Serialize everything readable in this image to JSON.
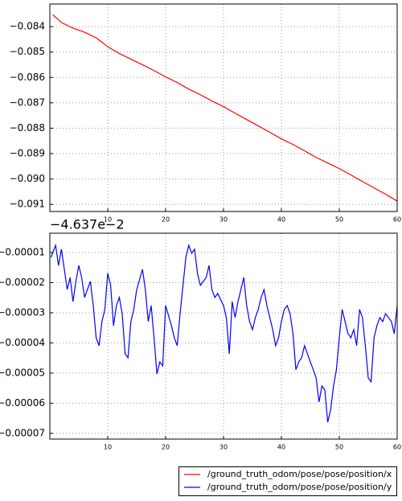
{
  "chart_data": [
    {
      "type": "line",
      "xlim": [
        0,
        60
      ],
      "xticks": [
        10,
        20,
        30,
        40,
        50,
        60
      ],
      "ylim": [
        -0.09128,
        -0.08311
      ],
      "yticks": [
        {
          "value": -0.084,
          "label": "−0.084"
        },
        {
          "value": -0.085,
          "label": "−0.085"
        },
        {
          "value": -0.086,
          "label": "−0.086"
        },
        {
          "value": -0.087,
          "label": "−0.087"
        },
        {
          "value": -0.088,
          "label": "−0.088"
        },
        {
          "value": -0.089,
          "label": "−0.089"
        },
        {
          "value": -0.09,
          "label": "−0.090"
        },
        {
          "value": -0.091,
          "label": "−0.091"
        }
      ],
      "grid": true,
      "x": [
        0.5,
        2,
        4,
        6,
        8,
        10,
        12,
        14,
        16,
        18,
        20,
        22,
        24,
        26,
        28,
        30,
        32,
        34,
        36,
        38,
        40,
        42,
        44,
        46,
        48,
        50,
        52,
        54,
        56,
        58,
        60
      ],
      "series": [
        {
          "name": "/ground_truth_odom/pose/pose/position/x",
          "color": "#ff0000",
          "values": [
            -0.08353,
            -0.08384,
            -0.08406,
            -0.08422,
            -0.08444,
            -0.08479,
            -0.08506,
            -0.08528,
            -0.0855,
            -0.08573,
            -0.08598,
            -0.0862,
            -0.08646,
            -0.08668,
            -0.08693,
            -0.08715,
            -0.08741,
            -0.08766,
            -0.08791,
            -0.08816,
            -0.08842,
            -0.08864,
            -0.08889,
            -0.08915,
            -0.08937,
            -0.08959,
            -0.08984,
            -0.0901,
            -0.09035,
            -0.0906,
            -0.09087
          ]
        }
      ]
    },
    {
      "type": "line",
      "offset_text": "−4.637e−2",
      "xlim": [
        0,
        60
      ],
      "xticks": [
        10,
        20,
        30,
        40,
        50,
        60
      ],
      "ylim": [
        -7.19e-05,
        -3.6e-06
      ],
      "yticks": [
        {
          "value": -1e-05,
          "label": "−0.00001"
        },
        {
          "value": -2e-05,
          "label": "−0.00002"
        },
        {
          "value": -3e-05,
          "label": "−0.00003"
        },
        {
          "value": -4e-05,
          "label": "−0.00004"
        },
        {
          "value": -5e-05,
          "label": "−0.00005"
        },
        {
          "value": -6e-05,
          "label": "−0.00006"
        },
        {
          "value": -7e-05,
          "label": "−0.00007"
        }
      ],
      "grid": true,
      "x": [
        0.2,
        1,
        1.5,
        2,
        3,
        3.5,
        4,
        4.5,
        5,
        5.5,
        6,
        7,
        7.5,
        8,
        8.5,
        9,
        9.5,
        10,
        10.5,
        11,
        11.5,
        12,
        12.5,
        13,
        13.5,
        14,
        14.5,
        15,
        16,
        16.5,
        17,
        17.5,
        18,
        18.5,
        19,
        19.5,
        20,
        21,
        21.5,
        22,
        22.5,
        23,
        23.5,
        24,
        24.5,
        25,
        25.5,
        26,
        27,
        27.5,
        28,
        28.5,
        29,
        30,
        30.5,
        31,
        31.5,
        32,
        32.5,
        33,
        33.5,
        34,
        34.5,
        35,
        35.5,
        36,
        36.5,
        37,
        37.5,
        38,
        38.5,
        39,
        39.5,
        40,
        40.5,
        41,
        41.5,
        42,
        42.5,
        43,
        43.5,
        44,
        45,
        45.5,
        46,
        46.5,
        47,
        47.5,
        48,
        48.5,
        49,
        49.5,
        50,
        50.5,
        51,
        51.5,
        52,
        52.5,
        53,
        53.5,
        54,
        54.5,
        55,
        55.5,
        56,
        56.5,
        57,
        57.5,
        58,
        58.5,
        59,
        59.5,
        60
      ],
      "series": [
        {
          "name": "/ground_truth_odom/pose/pose/position/y",
          "color": "#0000ff",
          "values": [
            -1.16e-05,
            -7.6e-06,
            -1.43e-05,
            -8.9e-06,
            -2.23e-05,
            -1.83e-05,
            -2.63e-05,
            -1.96e-05,
            -1.43e-05,
            -1.83e-05,
            -2.49e-05,
            -1.96e-05,
            -2.76e-05,
            -3.83e-05,
            -4.09e-05,
            -3.29e-05,
            -2.89e-05,
            -1.69e-05,
            -2.09e-05,
            -3.43e-05,
            -2.76e-05,
            -2.49e-05,
            -3.03e-05,
            -4.36e-05,
            -4.49e-05,
            -3.29e-05,
            -2.89e-05,
            -2.23e-05,
            -1.56e-05,
            -2.23e-05,
            -3.29e-05,
            -2.76e-05,
            -3.83e-05,
            -5.03e-05,
            -4.63e-05,
            -4.76e-05,
            -2.76e-05,
            -3.43e-05,
            -3.83e-05,
            -4.09e-05,
            -3.03e-05,
            -2.09e-05,
            -1.16e-05,
            -7.6e-06,
            -1.03e-05,
            -8.9e-06,
            -1.69e-05,
            -2.09e-05,
            -1.83e-05,
            -1.43e-05,
            -2.23e-05,
            -2.49e-05,
            -2.36e-05,
            -2.76e-05,
            -3.16e-05,
            -4.36e-05,
            -2.63e-05,
            -3.16e-05,
            -2.63e-05,
            -2.23e-05,
            -1.83e-05,
            -2.76e-05,
            -3.29e-05,
            -3.56e-05,
            -3.16e-05,
            -2.89e-05,
            -2.49e-05,
            -2.23e-05,
            -2.76e-05,
            -3.16e-05,
            -3.56e-05,
            -4.09e-05,
            -3.83e-05,
            -3.29e-05,
            -2.89e-05,
            -2.76e-05,
            -3.03e-05,
            -3.69e-05,
            -4.89e-05,
            -4.63e-05,
            -4.49e-05,
            -4.09e-05,
            -4.63e-05,
            -4.89e-05,
            -5.16e-05,
            -5.96e-05,
            -5.43e-05,
            -5.56e-05,
            -6.63e-05,
            -6.23e-05,
            -5.43e-05,
            -4.89e-05,
            -3.83e-05,
            -2.89e-05,
            -3.29e-05,
            -3.69e-05,
            -3.83e-05,
            -3.56e-05,
            -4.09e-05,
            -2.89e-05,
            -3.16e-05,
            -4.09e-05,
            -5.16e-05,
            -5.29e-05,
            -3.83e-05,
            -3.43e-05,
            -3.16e-05,
            -3.29e-05,
            -3.03e-05,
            -3.16e-05,
            -3.29e-05,
            -3.69e-05,
            -2.76e-05
          ]
        }
      ]
    }
  ]
}
